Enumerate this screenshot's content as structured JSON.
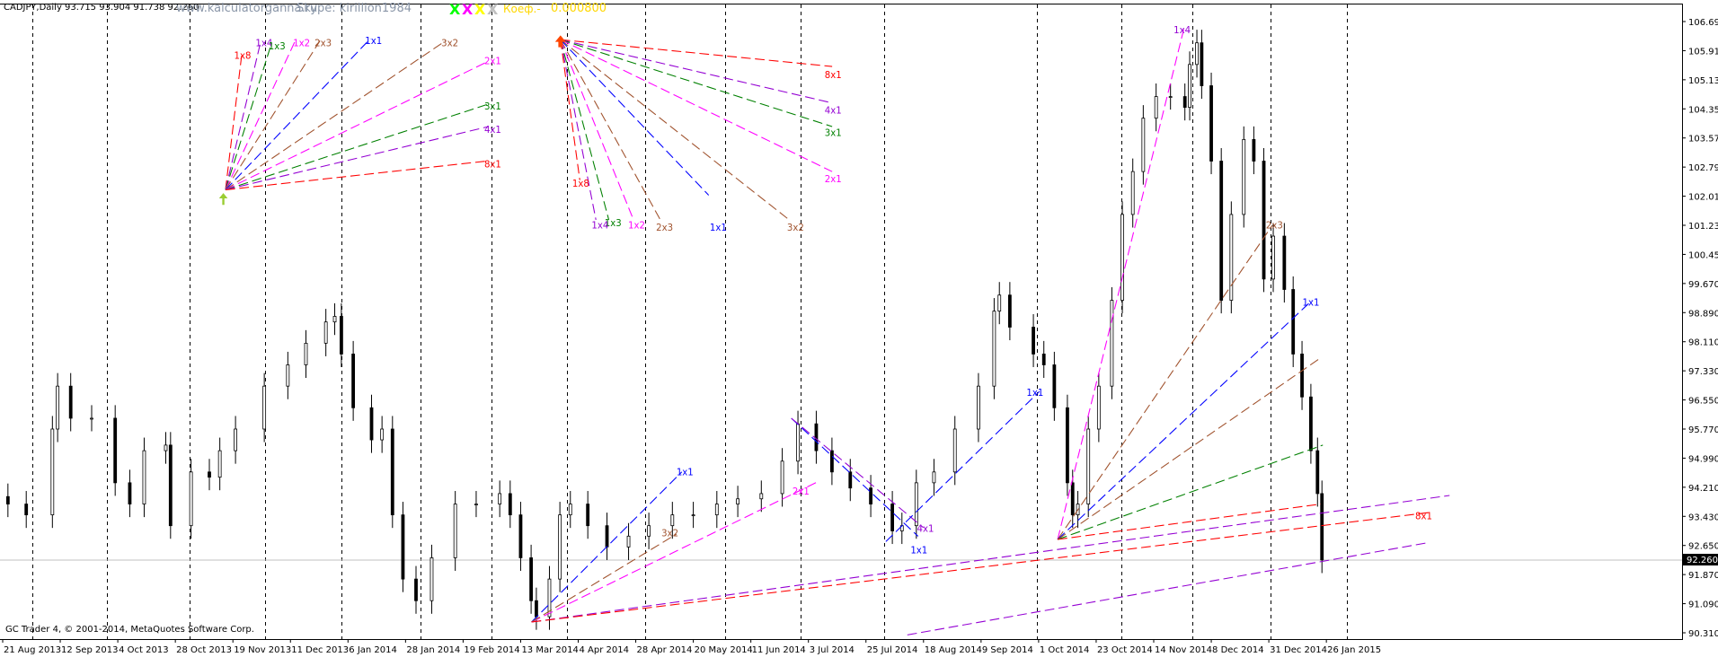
{
  "header": {
    "symbol_info": "CADJPY,Daily  93.715 93.904 91.738 92.260",
    "website": "www.kalculatorganna.ru",
    "skype": "Skype: kirillion1984",
    "markers": [
      {
        "label": "X",
        "color": "#00ff00"
      },
      {
        "label": "X",
        "color": "#ff00ff"
      },
      {
        "label": "X",
        "color": "#ffff00"
      },
      {
        "label": "X",
        "color": "#c0c0c0"
      }
    ],
    "koef_label": "Коеф.-",
    "koef_value": "0.000800"
  },
  "footer": {
    "copyright": "GC Trader 4, © 2001-2014, MetaQuotes Software Corp."
  },
  "fans": {
    "top_left": [
      "1x8",
      "1x4",
      "1x3",
      "1x2",
      "2x3",
      "1x1",
      "3x2",
      "2x1",
      "3x1",
      "4x1",
      "8x1"
    ],
    "top_mid": [
      "8x1",
      "4x1",
      "3x1",
      "2x1",
      "3x2",
      "1x1",
      "2x3",
      "1x2",
      "1x3",
      "1x4",
      "1x8"
    ],
    "march_low": [
      "1x1",
      "2x1",
      "3x2",
      "8x1"
    ],
    "july_high": [
      "1x1",
      "4x1"
    ],
    "aug_low": [
      "1x1"
    ],
    "oct_low": [
      "1x4",
      "2x3",
      "1x1"
    ]
  },
  "colors": {
    "1x8": "#ff0000",
    "1x4": "#9400d3",
    "1x3": "#008000",
    "1x2": "#ff00ff",
    "2x3": "#a0522d",
    "1x1": "#0000ff",
    "3x2": "#a0522d",
    "2x1": "#ff00ff",
    "3x1": "#008000",
    "4x1": "#9400d3",
    "8x1": "#ff0000"
  },
  "chart_data": {
    "type": "candlestick",
    "title": "CADJPY,Daily",
    "last_price": "92.260",
    "ohlc_last": {
      "open": 93.715,
      "high": 93.904,
      "low": 91.738,
      "close": 92.26
    },
    "ylim": [
      90.31,
      106.69
    ],
    "y_ticks": [
      "106.690",
      "105.910",
      "105.130",
      "104.350",
      "103.570",
      "102.790",
      "102.010",
      "101.230",
      "100.450",
      "99.670",
      "98.890",
      "98.110",
      "97.330",
      "96.550",
      "95.770",
      "94.990",
      "94.210",
      "93.430",
      "92.650",
      "91.870",
      "91.090",
      "90.310"
    ],
    "x_ticks": [
      {
        "label": "21 Aug 2013",
        "date": "2013-08-21"
      },
      {
        "label": "12 Sep 2013",
        "date": "2013-09-12"
      },
      {
        "label": "4 Oct 2013",
        "date": "2013-10-04"
      },
      {
        "label": "28 Oct 2013",
        "date": "2013-10-28"
      },
      {
        "label": "19 Nov 2013",
        "date": "2013-11-19"
      },
      {
        "label": "11 Dec 2013",
        "date": "2013-12-11"
      },
      {
        "label": "6 Jan 2014",
        "date": "2014-01-06"
      },
      {
        "label": "28 Jan 2014",
        "date": "2014-01-28"
      },
      {
        "label": "19 Feb 2014",
        "date": "2014-02-19"
      },
      {
        "label": "13 Mar 2014",
        "date": "2014-03-13"
      },
      {
        "label": "4 Apr 2014",
        "date": "2014-04-04"
      },
      {
        "label": "28 Apr 2014",
        "date": "2014-04-28"
      },
      {
        "label": "20 May 2014",
        "date": "2014-05-20"
      },
      {
        "label": "11 Jun 2014",
        "date": "2014-06-11"
      },
      {
        "label": "3 Jul 2014",
        "date": "2014-07-03"
      },
      {
        "label": "25 Jul 2014",
        "date": "2014-07-25"
      },
      {
        "label": "18 Aug 2014",
        "date": "2014-08-18"
      },
      {
        "label": "9 Sep 2014",
        "date": "2014-09-09"
      },
      {
        "label": "1 Oct 2014",
        "date": "2014-10-01"
      },
      {
        "label": "23 Oct 2014",
        "date": "2014-10-23"
      },
      {
        "label": "14 Nov 2014",
        "date": "2014-11-14"
      },
      {
        "label": "8 Dec 2014",
        "date": "2014-12-08"
      },
      {
        "label": "31 Dec 2014",
        "date": "2014-12-31"
      },
      {
        "label": "26 Jan 2015",
        "date": "2015-01-26"
      }
    ],
    "series": [
      {
        "dates": [
          "2013-08-23",
          "2013-08-30",
          "2013-09-09",
          "2013-09-11",
          "2013-09-16",
          "2013-09-24",
          "2013-10-03",
          "2013-10-09",
          "2013-10-15",
          "2013-10-24",
          "2013-10-26",
          "2013-11-03",
          "2013-11-10",
          "2013-11-14",
          "2013-11-20",
          "2013-12-01",
          "2013-12-10",
          "2013-12-18",
          "2013-12-27",
          "2013-12-31",
          "2014-01-03",
          "2014-01-08",
          "2014-01-15",
          "2014-01-19",
          "2014-01-23",
          "2014-01-27",
          "2014-02-01",
          "2014-02-07",
          "2014-02-16",
          "2014-02-24",
          "2014-03-05",
          "2014-03-09",
          "2014-03-13",
          "2014-03-17",
          "2014-03-19",
          "2014-03-24",
          "2014-03-28",
          "2014-04-01",
          "2014-04-08",
          "2014-04-16",
          "2014-04-25",
          "2014-05-03",
          "2014-05-12",
          "2014-05-20",
          "2014-05-29",
          "2014-06-06",
          "2014-06-15",
          "2014-06-23",
          "2014-06-29",
          "2014-07-06",
          "2014-07-12",
          "2014-07-19",
          "2014-07-27",
          "2014-08-05",
          "2014-08-09",
          "2014-08-15",
          "2014-08-22",
          "2014-08-30",
          "2014-09-08",
          "2014-09-14",
          "2014-09-16",
          "2014-09-20",
          "2014-09-29",
          "2014-10-03",
          "2014-10-07",
          "2014-10-12",
          "2014-10-14",
          "2014-10-16",
          "2014-10-20",
          "2014-10-24",
          "2014-10-29",
          "2014-11-02",
          "2014-11-06",
          "2014-11-10",
          "2014-11-15",
          "2014-11-21",
          "2014-11-27",
          "2014-11-29",
          "2014-12-02",
          "2014-12-04",
          "2014-12-08",
          "2014-12-12",
          "2014-12-16",
          "2014-12-21",
          "2014-12-25",
          "2014-12-29",
          "2015-01-02",
          "2015-01-07",
          "2015-01-11",
          "2015-01-15",
          "2015-01-19",
          "2015-01-22",
          "2015-01-24"
        ],
        "close": [
          93.76,
          93.47,
          95.77,
          96.92,
          96.06,
          96.06,
          94.33,
          93.76,
          95.19,
          95.34,
          93.18,
          94.62,
          94.48,
          95.19,
          95.77,
          96.92,
          97.49,
          98.07,
          98.64,
          98.79,
          97.78,
          96.34,
          95.48,
          95.77,
          93.47,
          91.75,
          91.17,
          92.32,
          93.76,
          93.76,
          94.04,
          93.47,
          92.32,
          91.17,
          90.74,
          91.75,
          93.47,
          93.76,
          93.18,
          92.61,
          92.9,
          93.18,
          93.47,
          93.47,
          93.76,
          93.9,
          94.04,
          94.91,
          95.91,
          95.19,
          94.62,
          94.19,
          93.76,
          93.04,
          93.18,
          94.33,
          94.62,
          95.77,
          96.92,
          98.93,
          99.36,
          98.5,
          97.78,
          97.49,
          96.34,
          94.33,
          93.47,
          93.76,
          95.77,
          96.92,
          99.22,
          101.52,
          102.67,
          104.1,
          104.68,
          104.68,
          104.39,
          105.54,
          106.12,
          104.97,
          102.95,
          99.22,
          101.52,
          103.53,
          102.95,
          99.79,
          100.94,
          99.51,
          97.78,
          96.63,
          95.19,
          94.04,
          92.26
        ]
      }
    ]
  }
}
